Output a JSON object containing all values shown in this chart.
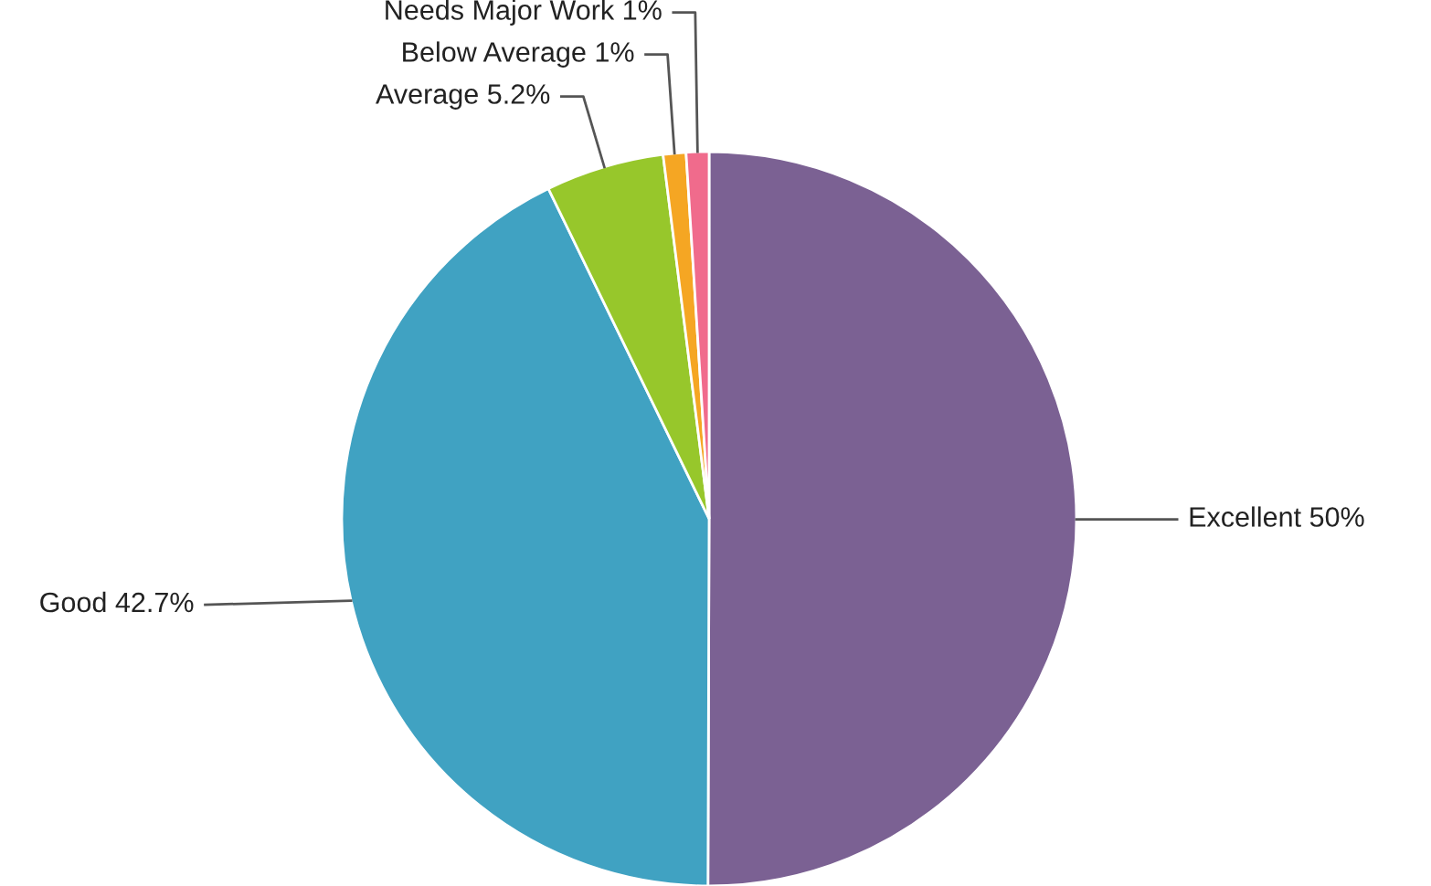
{
  "chart_data": {
    "type": "pie",
    "categories": [
      "Excellent",
      "Good",
      "Average",
      "Below Average",
      "Needs Major Work"
    ],
    "values": [
      50,
      42.7,
      5.2,
      1,
      1
    ],
    "value_labels": [
      "50%",
      "42.7%",
      "5.2%",
      "1%",
      "1%"
    ],
    "colors": [
      "#7b6193",
      "#40a2c2",
      "#97c72b",
      "#f5a623",
      "#f06b8c"
    ]
  }
}
